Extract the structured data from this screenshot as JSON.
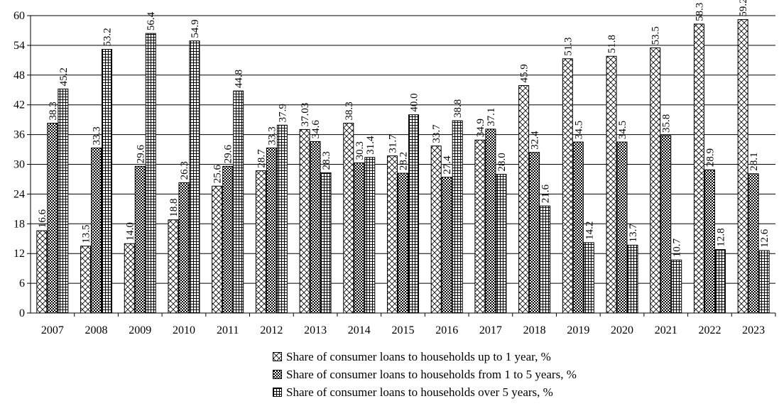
{
  "chart_data": {
    "type": "bar",
    "categories": [
      "2007",
      "2008",
      "2009",
      "2010",
      "2011",
      "2012",
      "2013",
      "2014",
      "2015",
      "2016",
      "2017",
      "2018",
      "2019",
      "2020",
      "2021",
      "2022",
      "2023"
    ],
    "series": [
      {
        "name": "Share of consumer loans to households up to 1 year, %",
        "pattern": "crosshatch",
        "values": [
          16.6,
          13.5,
          14.0,
          18.8,
          25.6,
          28.7,
          37.03,
          38.3,
          31.7,
          33.7,
          34.9,
          45.9,
          51.3,
          51.8,
          53.5,
          58.3,
          59.2
        ],
        "labels": [
          "16.6",
          "13.5",
          "14.0",
          "18.8",
          "25.6",
          "28.7",
          "37.03",
          "38.3",
          "31.7",
          "33.7",
          "34.9",
          "45.9",
          "51.3",
          "51.8",
          "53.5",
          "58.3",
          "59.2"
        ]
      },
      {
        "name": "Share of consumer loans to households from 1 to 5 years, %",
        "pattern": "dense",
        "values": [
          38.3,
          33.3,
          29.6,
          26.3,
          29.6,
          33.3,
          34.6,
          30.3,
          28.2,
          27.4,
          37.1,
          32.4,
          34.5,
          34.5,
          35.8,
          28.9,
          28.1
        ],
        "labels": [
          "38.3",
          "33.3",
          "29.6",
          "26.3",
          "29.6",
          "33.3",
          "34.6",
          "30.3",
          "28.2",
          "27.4",
          "37.1",
          "32.4",
          "34.5",
          "34.5",
          "35.8",
          "28.9",
          "28.1"
        ]
      },
      {
        "name": "Share of consumer loans to households over 5 years, %",
        "pattern": "grid",
        "values": [
          45.2,
          53.2,
          56.4,
          54.9,
          44.8,
          37.9,
          28.3,
          31.4,
          40.0,
          38.8,
          28.0,
          21.6,
          14.2,
          13.7,
          10.7,
          12.8,
          12.6
        ],
        "labels": [
          "45.2",
          "53.2",
          "56.4",
          "54.9",
          "44.8",
          "37.9",
          "28.3",
          "31.4",
          "40.0",
          "38.8",
          "28.0",
          "21.6",
          "14.2",
          "13.7",
          "10.7",
          "12.8",
          "12.6"
        ]
      }
    ],
    "yticks": [
      "0",
      "6",
      "12",
      "18",
      "24",
      "30",
      "36",
      "42",
      "48",
      "54",
      "60"
    ],
    "ylim": [
      0,
      60
    ],
    "grid": true,
    "legend_position": "bottom",
    "title": "",
    "xlabel": "",
    "ylabel": ""
  }
}
